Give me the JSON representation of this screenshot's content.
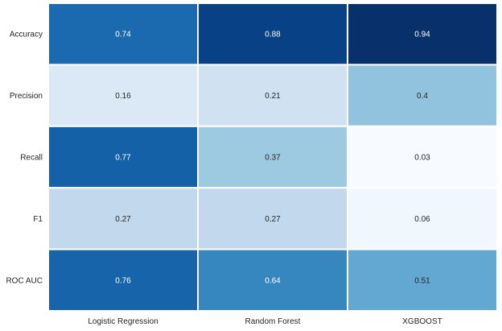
{
  "chart_data": {
    "type": "heatmap",
    "title": "",
    "xlabel": "",
    "ylabel": "",
    "columns": [
      "Logistic Regression",
      "Random Forest",
      "XGBOOST"
    ],
    "rows": [
      "Accuracy",
      "Precision",
      "Recall",
      "F1",
      "ROC AUC"
    ],
    "values": [
      [
        0.74,
        0.88,
        0.94
      ],
      [
        0.16,
        0.21,
        0.4
      ],
      [
        0.77,
        0.37,
        0.03
      ],
      [
        0.27,
        0.27,
        0.06
      ],
      [
        0.76,
        0.64,
        0.51
      ]
    ],
    "value_range": [
      0.03,
      0.94
    ],
    "colormap": "Blues",
    "annotations": true,
    "colorbar": false,
    "cell_border_color": "#ffffff"
  }
}
